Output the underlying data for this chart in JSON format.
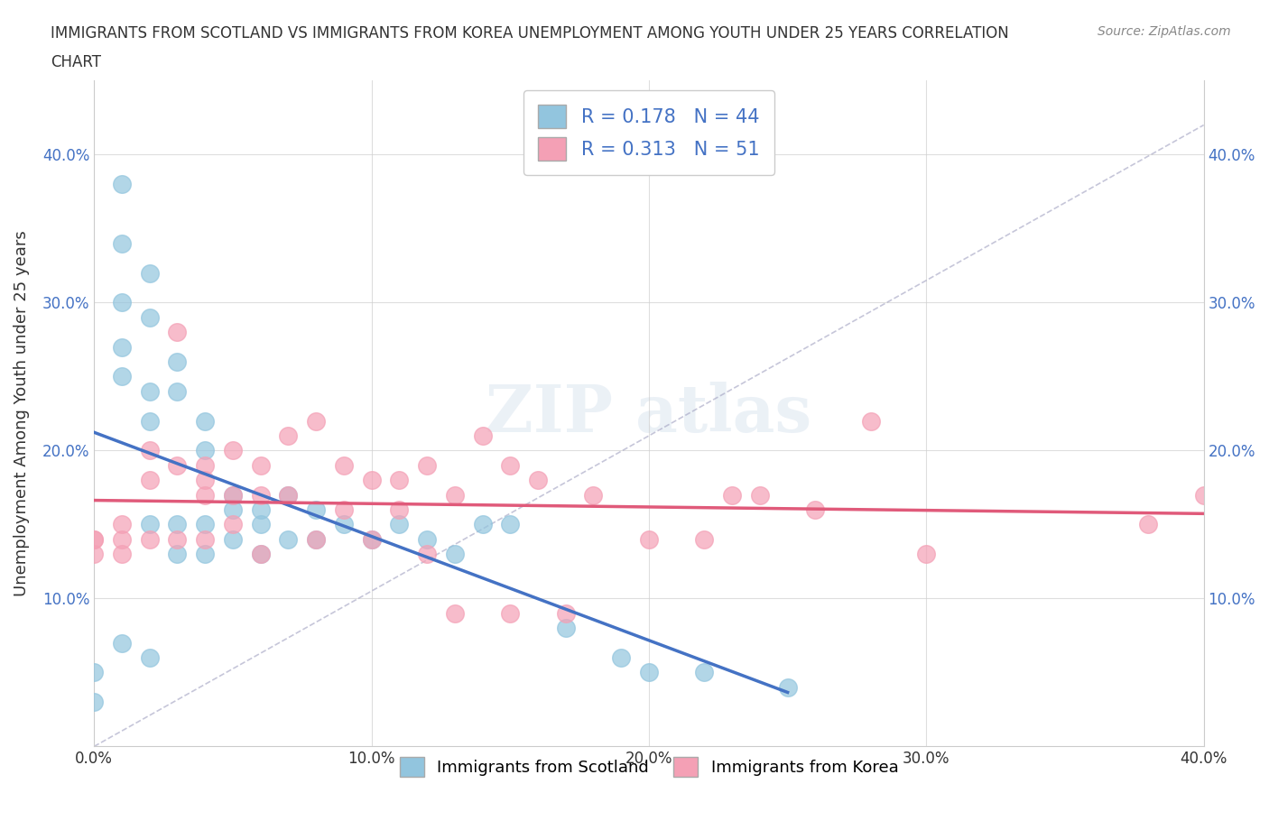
{
  "title_line1": "IMMIGRANTS FROM SCOTLAND VS IMMIGRANTS FROM KOREA UNEMPLOYMENT AMONG YOUTH UNDER 25 YEARS CORRELATION",
  "title_line2": "CHART",
  "source": "Source: ZipAtlas.com",
  "xlabel": "",
  "ylabel": "Unemployment Among Youth under 25 years",
  "xlim": [
    0.0,
    0.4
  ],
  "ylim": [
    0.0,
    0.45
  ],
  "xtick_labels": [
    "0.0%",
    "10.0%",
    "20.0%",
    "30.0%",
    "40.0%"
  ],
  "xtick_vals": [
    0.0,
    0.1,
    0.2,
    0.3,
    0.4
  ],
  "ytick_labels": [
    "10.0%",
    "20.0%",
    "30.0%",
    "40.0%"
  ],
  "ytick_vals": [
    0.1,
    0.2,
    0.3,
    0.4
  ],
  "scotland_color": "#92c5de",
  "korea_color": "#f4a0b5",
  "scotland_R": 0.178,
  "scotland_N": 44,
  "korea_R": 0.313,
  "korea_N": 51,
  "scotland_line_color": "#4472c4",
  "korea_line_color": "#e05a7a",
  "dashed_line_color": "#a0a0c0",
  "legend_label_scotland": "Immigrants from Scotland",
  "legend_label_korea": "Immigrants from Korea",
  "scotland_x": [
    0.0,
    0.0,
    0.01,
    0.01,
    0.01,
    0.01,
    0.01,
    0.01,
    0.02,
    0.02,
    0.02,
    0.02,
    0.02,
    0.02,
    0.03,
    0.03,
    0.03,
    0.03,
    0.04,
    0.04,
    0.04,
    0.04,
    0.05,
    0.05,
    0.05,
    0.06,
    0.06,
    0.06,
    0.07,
    0.07,
    0.08,
    0.08,
    0.09,
    0.1,
    0.11,
    0.12,
    0.13,
    0.14,
    0.15,
    0.17,
    0.19,
    0.2,
    0.22,
    0.25
  ],
  "scotland_y": [
    0.05,
    0.03,
    0.38,
    0.34,
    0.3,
    0.27,
    0.25,
    0.07,
    0.32,
    0.29,
    0.24,
    0.22,
    0.15,
    0.06,
    0.26,
    0.24,
    0.15,
    0.13,
    0.22,
    0.2,
    0.15,
    0.13,
    0.17,
    0.16,
    0.14,
    0.16,
    0.15,
    0.13,
    0.17,
    0.14,
    0.16,
    0.14,
    0.15,
    0.14,
    0.15,
    0.14,
    0.13,
    0.15,
    0.15,
    0.08,
    0.06,
    0.05,
    0.05,
    0.04
  ],
  "korea_x": [
    0.0,
    0.0,
    0.0,
    0.01,
    0.01,
    0.01,
    0.02,
    0.02,
    0.02,
    0.03,
    0.03,
    0.03,
    0.04,
    0.04,
    0.04,
    0.04,
    0.05,
    0.05,
    0.05,
    0.06,
    0.06,
    0.06,
    0.07,
    0.07,
    0.08,
    0.08,
    0.09,
    0.09,
    0.1,
    0.1,
    0.11,
    0.11,
    0.12,
    0.12,
    0.13,
    0.13,
    0.14,
    0.15,
    0.15,
    0.16,
    0.17,
    0.18,
    0.2,
    0.22,
    0.23,
    0.24,
    0.26,
    0.28,
    0.3,
    0.38,
    0.4
  ],
  "korea_y": [
    0.14,
    0.14,
    0.13,
    0.15,
    0.14,
    0.13,
    0.2,
    0.18,
    0.14,
    0.28,
    0.19,
    0.14,
    0.19,
    0.18,
    0.17,
    0.14,
    0.2,
    0.17,
    0.15,
    0.19,
    0.17,
    0.13,
    0.21,
    0.17,
    0.22,
    0.14,
    0.19,
    0.16,
    0.18,
    0.14,
    0.18,
    0.16,
    0.19,
    0.13,
    0.17,
    0.09,
    0.21,
    0.19,
    0.09,
    0.18,
    0.09,
    0.17,
    0.14,
    0.14,
    0.17,
    0.17,
    0.16,
    0.22,
    0.13,
    0.15,
    0.17
  ]
}
